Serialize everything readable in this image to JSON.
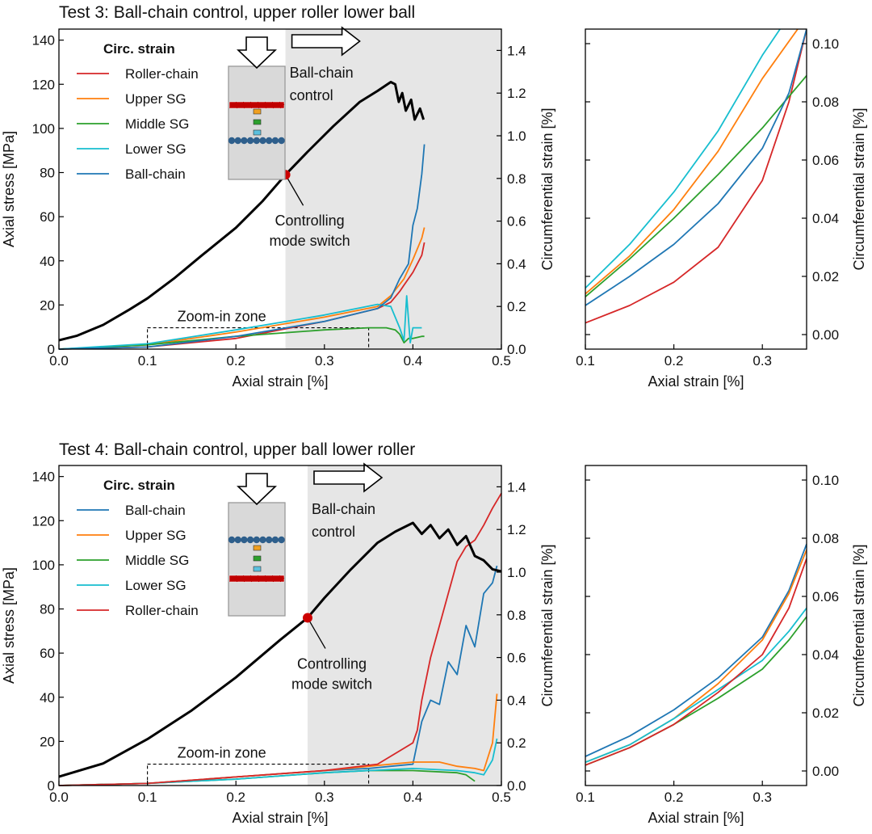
{
  "chart_data": [
    {
      "id": "test3_main",
      "type": "line",
      "title": "Test 3: Ball-chain control, upper roller lower ball",
      "xlabel": "Axial strain [%]",
      "ylabel": "Axial stress [MPa]",
      "y2label": "Circumferential strain [%]",
      "xlim": [
        0,
        0.5
      ],
      "ylim": [
        0,
        145
      ],
      "y2lim": [
        0,
        1.5
      ],
      "xticks": [
        "0.0",
        "0.1",
        "0.2",
        "0.3",
        "0.4",
        "0.5"
      ],
      "yticks": [
        "0",
        "20",
        "40",
        "60",
        "80",
        "100",
        "120",
        "140"
      ],
      "y2ticks": [
        "0.0",
        "0.2",
        "0.4",
        "0.6",
        "0.8",
        "1.0",
        "1.2",
        "1.4"
      ],
      "legend_title": "Circ. strain",
      "legend": [
        "Roller-chain",
        "Upper SG",
        "Middle SG",
        "Lower SG",
        "Ball-chain"
      ],
      "shaded_from": 0.256,
      "switch_point": {
        "x": 0.256,
        "y": 79
      },
      "annotations": {
        "switch": [
          "Controlling",
          "mode switch"
        ],
        "control": [
          "Ball-chain",
          "control"
        ],
        "zoom": "Zoom-in zone"
      },
      "zoom_box": {
        "x": [
          0.1,
          0.35
        ],
        "y2": [
          0,
          0.1
        ]
      },
      "stress": {
        "name": "Axial stress",
        "color": "#000000",
        "x": [
          0,
          0.02,
          0.05,
          0.08,
          0.1,
          0.13,
          0.16,
          0.2,
          0.23,
          0.256,
          0.28,
          0.31,
          0.34,
          0.36,
          0.375,
          0.38,
          0.384,
          0.388,
          0.392,
          0.398,
          0.402,
          0.408,
          0.412
        ],
        "y": [
          4,
          6,
          11,
          18,
          23,
          32,
          42,
          55,
          67,
          79,
          89,
          101,
          112,
          117,
          121,
          120,
          112,
          116,
          108,
          113,
          104,
          109,
          104
        ]
      },
      "series": [
        {
          "name": "Roller-chain",
          "color": "#d62728",
          "x": [
            0,
            0.1,
            0.2,
            0.3,
            0.36,
            0.375,
            0.385,
            0.39,
            0.4,
            0.41,
            0.413
          ],
          "y": [
            0,
            0.01,
            0.05,
            0.13,
            0.19,
            0.22,
            0.27,
            0.3,
            0.36,
            0.44,
            0.5
          ]
        },
        {
          "name": "Upper SG",
          "color": "#ff7f0e",
          "x": [
            0,
            0.1,
            0.2,
            0.3,
            0.36,
            0.375,
            0.39,
            0.4,
            0.41,
            0.413
          ],
          "y": [
            0,
            0.02,
            0.08,
            0.15,
            0.2,
            0.25,
            0.33,
            0.42,
            0.52,
            0.57
          ]
        },
        {
          "name": "Middle SG",
          "color": "#2ca02c",
          "x": [
            0,
            0.1,
            0.2,
            0.3,
            0.35,
            0.37,
            0.38,
            0.385,
            0.39,
            0.395,
            0.4,
            0.41,
            0.413
          ],
          "y": [
            0,
            0.02,
            0.06,
            0.09,
            0.1,
            0.1,
            0.09,
            0.07,
            0.03,
            0.05,
            0.05,
            0.06,
            0.06
          ]
        },
        {
          "name": "Lower SG",
          "color": "#17becf",
          "x": [
            0,
            0.1,
            0.2,
            0.3,
            0.36,
            0.375,
            0.385,
            0.39,
            0.393,
            0.397,
            0.4,
            0.41
          ],
          "y": [
            0,
            0.025,
            0.09,
            0.16,
            0.21,
            0.2,
            0.1,
            0.04,
            0.25,
            0.03,
            0.1,
            0.1
          ]
        },
        {
          "name": "Ball-chain",
          "color": "#1f77b4",
          "x": [
            0,
            0.1,
            0.2,
            0.3,
            0.36,
            0.375,
            0.385,
            0.395,
            0.4,
            0.405,
            0.41,
            0.413
          ],
          "y": [
            0,
            0.01,
            0.06,
            0.13,
            0.19,
            0.24,
            0.33,
            0.4,
            0.58,
            0.66,
            0.82,
            0.96
          ]
        }
      ]
    },
    {
      "id": "test3_zoom",
      "type": "line",
      "xlabel": "Axial strain [%]",
      "y2label": "Circumferential strain [%]",
      "xlim": [
        0.1,
        0.35
      ],
      "y2lim": [
        -0.005,
        0.105
      ],
      "xticks": [
        "0.1",
        "0.2",
        "0.3"
      ],
      "y2ticks": [
        "0.00",
        "0.02",
        "0.04",
        "0.06",
        "0.08",
        "0.10"
      ],
      "series": [
        {
          "name": "Roller-chain",
          "color": "#d62728",
          "x": [
            0.1,
            0.15,
            0.2,
            0.25,
            0.3,
            0.33,
            0.35
          ],
          "y": [
            0.004,
            0.01,
            0.018,
            0.03,
            0.053,
            0.08,
            0.105
          ]
        },
        {
          "name": "Upper SG",
          "color": "#ff7f0e",
          "x": [
            0.1,
            0.15,
            0.2,
            0.25,
            0.3,
            0.34
          ],
          "y": [
            0.014,
            0.027,
            0.043,
            0.063,
            0.088,
            0.105
          ]
        },
        {
          "name": "Middle SG",
          "color": "#2ca02c",
          "x": [
            0.1,
            0.15,
            0.2,
            0.25,
            0.3,
            0.35
          ],
          "y": [
            0.013,
            0.026,
            0.04,
            0.055,
            0.071,
            0.089
          ]
        },
        {
          "name": "Lower SG",
          "color": "#17becf",
          "x": [
            0.1,
            0.15,
            0.2,
            0.25,
            0.3,
            0.32
          ],
          "y": [
            0.016,
            0.031,
            0.049,
            0.07,
            0.096,
            0.105
          ]
        },
        {
          "name": "Ball-chain",
          "color": "#1f77b4",
          "x": [
            0.1,
            0.15,
            0.2,
            0.25,
            0.3,
            0.33,
            0.35
          ],
          "y": [
            0.01,
            0.02,
            0.031,
            0.045,
            0.064,
            0.083,
            0.105
          ]
        }
      ]
    },
    {
      "id": "test4_main",
      "type": "line",
      "title": "Test 4: Ball-chain control, upper ball lower roller",
      "xlabel": "Axial strain [%]",
      "ylabel": "Axial stress [MPa]",
      "y2label": "Circumferential strain [%]",
      "xlim": [
        0,
        0.5
      ],
      "ylim": [
        0,
        145
      ],
      "y2lim": [
        0,
        1.5
      ],
      "xticks": [
        "0.0",
        "0.1",
        "0.2",
        "0.3",
        "0.4",
        "0.5"
      ],
      "yticks": [
        "0",
        "20",
        "40",
        "60",
        "80",
        "100",
        "120",
        "140"
      ],
      "y2ticks": [
        "0.0",
        "0.2",
        "0.4",
        "0.6",
        "0.8",
        "1.0",
        "1.2",
        "1.4"
      ],
      "legend_title": "Circ. strain",
      "legend": [
        "Ball-chain",
        "Upper SG",
        "Middle SG",
        "Lower SG",
        "Roller-chain"
      ],
      "shaded_from": 0.281,
      "switch_point": {
        "x": 0.281,
        "y": 76
      },
      "annotations": {
        "switch": [
          "Controlling",
          "mode switch"
        ],
        "control": [
          "Ball-chain",
          "control"
        ],
        "zoom": "Zoom-in zone"
      },
      "zoom_box": {
        "x": [
          0.1,
          0.35
        ],
        "y2": [
          0,
          0.1
        ]
      },
      "stress": {
        "name": "Axial stress",
        "color": "#000000",
        "x": [
          0,
          0.05,
          0.1,
          0.15,
          0.2,
          0.25,
          0.281,
          0.3,
          0.33,
          0.36,
          0.38,
          0.4,
          0.41,
          0.42,
          0.43,
          0.44,
          0.45,
          0.46,
          0.47,
          0.48,
          0.49,
          0.5
        ],
        "y": [
          4,
          10,
          21,
          34,
          49,
          66,
          76,
          85,
          98,
          110,
          115,
          119,
          114,
          118,
          112,
          116,
          109,
          113,
          104,
          102,
          98,
          97
        ]
      },
      "series": [
        {
          "name": "Ball-chain",
          "color": "#1f77b4",
          "x": [
            0,
            0.1,
            0.2,
            0.3,
            0.35,
            0.4,
            0.41,
            0.42,
            0.43,
            0.44,
            0.45,
            0.46,
            0.47,
            0.48,
            0.49,
            0.495
          ],
          "y": [
            0,
            0.01,
            0.04,
            0.07,
            0.08,
            0.1,
            0.3,
            0.4,
            0.38,
            0.58,
            0.52,
            0.75,
            0.65,
            0.9,
            0.95,
            1.03
          ]
        },
        {
          "name": "Upper SG",
          "color": "#ff7f0e",
          "x": [
            0,
            0.1,
            0.2,
            0.3,
            0.35,
            0.4,
            0.43,
            0.45,
            0.47,
            0.48,
            0.49,
            0.495
          ],
          "y": [
            0,
            0.01,
            0.04,
            0.07,
            0.09,
            0.11,
            0.11,
            0.09,
            0.08,
            0.07,
            0.2,
            0.43
          ]
        },
        {
          "name": "Middle SG",
          "color": "#2ca02c",
          "x": [
            0,
            0.1,
            0.2,
            0.3,
            0.35,
            0.4,
            0.45,
            0.46,
            0.47
          ],
          "y": [
            0,
            0.01,
            0.03,
            0.06,
            0.07,
            0.07,
            0.06,
            0.05,
            0.02
          ]
        },
        {
          "name": "Lower SG",
          "color": "#17becf",
          "x": [
            0,
            0.1,
            0.2,
            0.3,
            0.35,
            0.4,
            0.45,
            0.47,
            0.48,
            0.49,
            0.495
          ],
          "y": [
            0,
            0.01,
            0.03,
            0.06,
            0.07,
            0.08,
            0.07,
            0.06,
            0.05,
            0.12,
            0.22
          ]
        },
        {
          "name": "Roller-chain",
          "color": "#d62728",
          "x": [
            0,
            0.1,
            0.2,
            0.3,
            0.36,
            0.4,
            0.405,
            0.41,
            0.42,
            0.43,
            0.44,
            0.45,
            0.46,
            0.47,
            0.48,
            0.49,
            0.5
          ],
          "y": [
            0,
            0.01,
            0.04,
            0.07,
            0.1,
            0.2,
            0.26,
            0.4,
            0.6,
            0.75,
            0.9,
            1.05,
            1.12,
            1.15,
            1.22,
            1.3,
            1.37
          ]
        }
      ]
    },
    {
      "id": "test4_zoom",
      "type": "line",
      "xlabel": "Axial strain [%]",
      "y2label": "Circumferential strain [%]",
      "xlim": [
        0.1,
        0.35
      ],
      "y2lim": [
        -0.005,
        0.105
      ],
      "xticks": [
        "0.1",
        "0.2",
        "0.3"
      ],
      "y2ticks": [
        "0.00",
        "0.02",
        "0.04",
        "0.06",
        "0.08",
        "0.10"
      ],
      "series": [
        {
          "name": "Ball-chain",
          "color": "#1f77b4",
          "x": [
            0.1,
            0.15,
            0.2,
            0.25,
            0.3,
            0.33,
            0.35
          ],
          "y": [
            0.005,
            0.012,
            0.021,
            0.032,
            0.046,
            0.062,
            0.078
          ]
        },
        {
          "name": "Upper SG",
          "color": "#ff7f0e",
          "x": [
            0.1,
            0.15,
            0.2,
            0.25,
            0.3,
            0.33,
            0.35
          ],
          "y": [
            0.003,
            0.009,
            0.018,
            0.03,
            0.045,
            0.061,
            0.076
          ]
        },
        {
          "name": "Middle SG",
          "color": "#2ca02c",
          "x": [
            0.1,
            0.15,
            0.2,
            0.25,
            0.3,
            0.33,
            0.35
          ],
          "y": [
            0.002,
            0.008,
            0.016,
            0.025,
            0.035,
            0.045,
            0.053
          ]
        },
        {
          "name": "Lower SG",
          "color": "#17becf",
          "x": [
            0.1,
            0.15,
            0.2,
            0.25,
            0.3,
            0.33,
            0.35
          ],
          "y": [
            0.003,
            0.009,
            0.018,
            0.028,
            0.038,
            0.048,
            0.056
          ]
        },
        {
          "name": "Roller-chain",
          "color": "#d62728",
          "x": [
            0.1,
            0.15,
            0.2,
            0.25,
            0.3,
            0.33,
            0.35
          ],
          "y": [
            0.002,
            0.008,
            0.016,
            0.027,
            0.04,
            0.056,
            0.073
          ]
        }
      ]
    }
  ]
}
